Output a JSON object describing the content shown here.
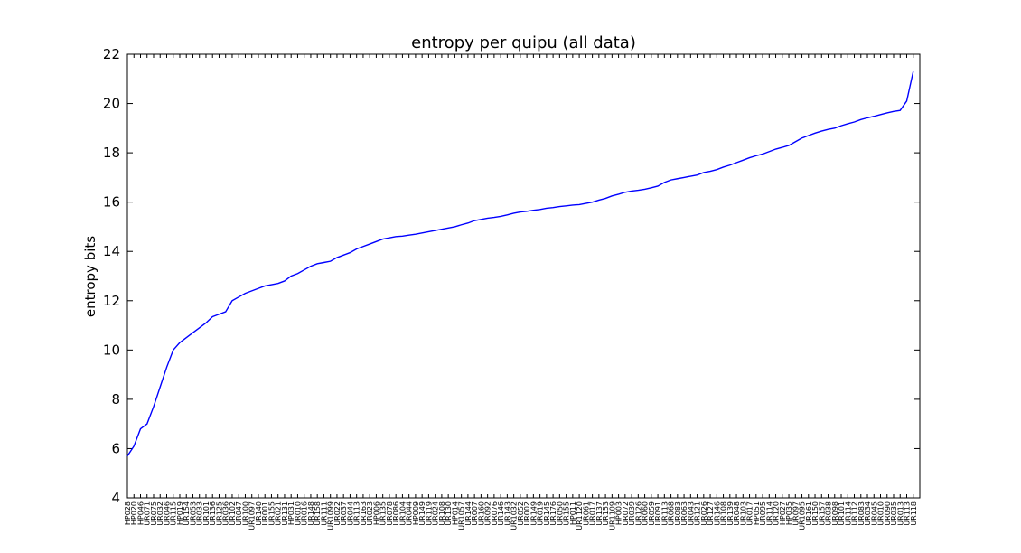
{
  "chart_data": {
    "type": "line",
    "title": "entropy per quipu (all data)",
    "xlabel": "",
    "ylabel": "entropy bits",
    "ylim": [
      4,
      22
    ],
    "yticks": [
      4,
      6,
      8,
      10,
      12,
      14,
      16,
      18,
      20,
      22
    ],
    "grid": false,
    "line_color": "#0000ff",
    "x_tick_labels": [
      "HP028",
      "HP020",
      "HP046",
      "UR071",
      "UR075",
      "UR032",
      "UR046",
      "UR115",
      "HP019",
      "UR154",
      "UR053",
      "UR033",
      "UR101",
      "UR136",
      "UR125",
      "UR036",
      "UR102",
      "UR047",
      "UR100",
      "UR1097",
      "UR140",
      "UR001",
      "UR155",
      "UR021",
      "UR131",
      "HP031",
      "UR010",
      "UR016",
      "UR148",
      "UR158",
      "UR111",
      "UR1099",
      "UR022",
      "UR037",
      "UR044",
      "UR113",
      "UR163",
      "UR023",
      "HP006",
      "UR135",
      "UR078",
      "UR086",
      "UR104",
      "UR044",
      "HP009",
      "UR149",
      "UR119",
      "UR024",
      "UR108",
      "UR130",
      "HP014",
      "UR1057",
      "UR144",
      "UR007",
      "UR160",
      "UR092",
      "UR076",
      "UR146",
      "UR143",
      "UR1032",
      "UR052",
      "UR002",
      "UR149",
      "UR019",
      "UR145",
      "UR176",
      "UR050",
      "UR155",
      "HP011",
      "UR1120",
      "UR061",
      "UR017",
      "UR137",
      "UR153",
      "UR1109",
      "HP003",
      "UR072",
      "UR039",
      "UR126",
      "UR060",
      "UR059",
      "UR091",
      "UR113",
      "UR068",
      "UR083",
      "UR063",
      "UR043",
      "UR121",
      "UR026",
      "UR127",
      "UR146",
      "UR108",
      "UR139",
      "UR048",
      "UR103",
      "UR017",
      "HP051",
      "UR095",
      "UR114",
      "UR120",
      "HP027",
      "HP035",
      "UR097",
      "UR1095",
      "UR161",
      "UR150",
      "UR157",
      "UR038",
      "UR098",
      "UR101",
      "UR114",
      "UR112",
      "UR083",
      "UR034",
      "UR045",
      "UR010",
      "UR090",
      "UR035",
      "UR013",
      "UR113",
      "UR118"
    ],
    "y": [
      5.7,
      6.1,
      6.8,
      7.0,
      7.7,
      8.5,
      9.3,
      10.0,
      10.3,
      10.5,
      10.7,
      10.9,
      11.1,
      11.35,
      11.45,
      11.55,
      12.0,
      12.15,
      12.3,
      12.4,
      12.5,
      12.6,
      12.65,
      12.7,
      12.8,
      13.0,
      13.1,
      13.25,
      13.4,
      13.5,
      13.55,
      13.6,
      13.75,
      13.85,
      13.95,
      14.1,
      14.2,
      14.3,
      14.4,
      14.5,
      14.55,
      14.6,
      14.62,
      14.66,
      14.7,
      14.75,
      14.8,
      14.85,
      14.9,
      14.95,
      15.0,
      15.08,
      15.15,
      15.25,
      15.3,
      15.35,
      15.38,
      15.42,
      15.48,
      15.55,
      15.6,
      15.63,
      15.67,
      15.7,
      15.75,
      15.78,
      15.82,
      15.85,
      15.88,
      15.9,
      15.95,
      16.0,
      16.08,
      16.15,
      16.25,
      16.32,
      16.4,
      16.45,
      16.48,
      16.52,
      16.58,
      16.65,
      16.8,
      16.9,
      16.95,
      17.0,
      17.05,
      17.1,
      17.2,
      17.25,
      17.32,
      17.42,
      17.5,
      17.6,
      17.7,
      17.8,
      17.88,
      17.95,
      18.05,
      18.15,
      18.22,
      18.3,
      18.45,
      18.6,
      18.7,
      18.8,
      18.88,
      18.95,
      19.0,
      19.1,
      19.18,
      19.25,
      19.35,
      19.42,
      19.48,
      19.55,
      19.62,
      19.68,
      19.72,
      20.1,
      21.3
    ]
  }
}
